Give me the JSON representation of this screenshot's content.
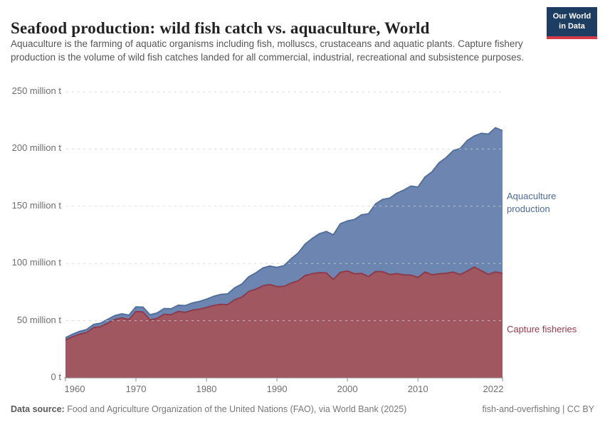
{
  "header": {
    "title": "Seafood production: wild fish catch vs. aquaculture, World",
    "subtitle": "Aquaculture is the farming of aquatic organisms including fish, molluscs, crustaceans and aquatic plants. Capture fishery production is the volume of wild fish catches landed for all commercial, industrial, recreational and subsistence purposes.",
    "logo": {
      "line1": "Our World",
      "line2": "in Data",
      "bg_color": "#1D3D63",
      "accent_color": "#D73A49"
    }
  },
  "chart_data": {
    "type": "area",
    "stacked": true,
    "title": "Seafood production: wild fish catch vs. aquaculture, World",
    "xlabel": "",
    "ylabel": "",
    "unit": "million t",
    "grid": "dashed horizontal",
    "legend_position": "right-of-plot",
    "ylim": [
      0,
      250
    ],
    "x": [
      1960,
      1961,
      1962,
      1963,
      1964,
      1965,
      1966,
      1967,
      1968,
      1969,
      1970,
      1971,
      1972,
      1973,
      1974,
      1975,
      1976,
      1977,
      1978,
      1979,
      1980,
      1981,
      1982,
      1983,
      1984,
      1985,
      1986,
      1987,
      1988,
      1989,
      1990,
      1991,
      1992,
      1993,
      1994,
      1995,
      1996,
      1997,
      1998,
      1999,
      2000,
      2001,
      2002,
      2003,
      2004,
      2005,
      2006,
      2007,
      2008,
      2009,
      2010,
      2011,
      2012,
      2013,
      2014,
      2015,
      2016,
      2017,
      2018,
      2019,
      2020,
      2021,
      2022
    ],
    "series": [
      {
        "name": "Capture fisheries",
        "color": "#A1575F",
        "line_color": "#8E3B4B",
        "label_color": "#96394B",
        "values": [
          33.1,
          35.9,
          38.2,
          39.6,
          43.9,
          44.8,
          47.9,
          51.0,
          52.4,
          51.0,
          58.0,
          57.6,
          50.6,
          52.0,
          55.6,
          55.2,
          58.0,
          57.3,
          59.2,
          60.0,
          61.5,
          63.3,
          64.3,
          64.0,
          68.3,
          70.5,
          75.5,
          77.5,
          80.5,
          81.5,
          79.8,
          80.0,
          82.8,
          84.8,
          89.5,
          91.0,
          92.0,
          91.7,
          86.0,
          92.3,
          93.4,
          91.0,
          91.3,
          88.6,
          93.0,
          92.8,
          90.3,
          91.1,
          90.0,
          89.8,
          87.8,
          92.5,
          90.1,
          91.0,
          91.4,
          92.5,
          90.3,
          93.4,
          96.8,
          93.6,
          90.4,
          92.6,
          91.3
        ]
      },
      {
        "name": "Aquaculture production",
        "color": "#6C86B1",
        "line_color": "#52709E",
        "label_color": "#4C6A9C",
        "values": [
          2.0,
          2.2,
          2.4,
          2.6,
          2.8,
          3.0,
          3.2,
          3.4,
          3.6,
          3.8,
          4.0,
          4.2,
          4.5,
          4.7,
          5.0,
          5.2,
          5.5,
          5.9,
          6.3,
          6.8,
          7.3,
          7.9,
          8.6,
          9.4,
          10.4,
          11.4,
          12.8,
          14.2,
          15.5,
          16.2,
          16.8,
          18.1,
          21.2,
          24.2,
          27.4,
          30.8,
          33.9,
          36.2,
          39.0,
          42.4,
          43.7,
          47.4,
          51.2,
          54.9,
          59.0,
          63.2,
          66.8,
          70.3,
          74.1,
          77.8,
          78.9,
          83.0,
          90.0,
          97.0,
          101.1,
          106.0,
          110.2,
          114.0,
          114.6,
          120.1,
          122.6,
          126.0,
          124.7
        ]
      }
    ],
    "y_ticks": [
      {
        "value": 0,
        "label": "0 t"
      },
      {
        "value": 50,
        "label": "50 million t"
      },
      {
        "value": 100,
        "label": "100 million t"
      },
      {
        "value": 150,
        "label": "150 million t"
      },
      {
        "value": 200,
        "label": "200 million t"
      },
      {
        "value": 250,
        "label": "250 million t"
      }
    ],
    "x_ticks": [
      1960,
      1970,
      1980,
      1990,
      2000,
      2010,
      2022
    ],
    "grid_color": "#CFCFCF",
    "axis_color": "#8F8F8F",
    "tick_text_color": "#6E6E6E"
  },
  "footer": {
    "source_label": "Data source:",
    "source_text": "Food and Agriculture Organization of the United Nations (FAO), via World Bank (2025)",
    "note_right": "fish-and-overfishing | CC BY"
  }
}
